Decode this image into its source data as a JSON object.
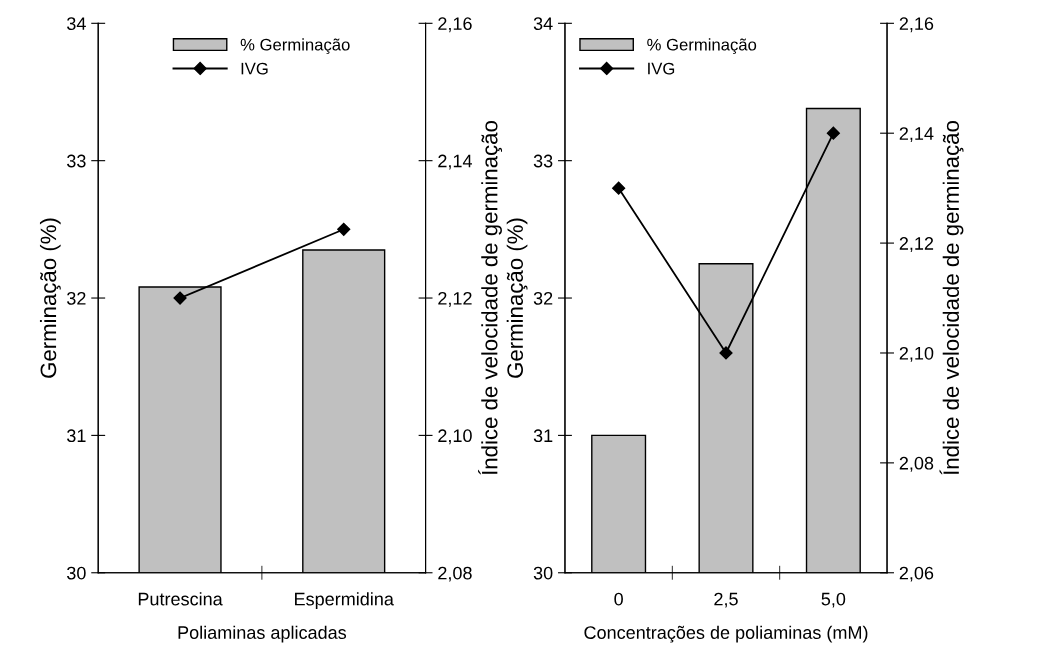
{
  "chart_data": [
    {
      "type": "bar",
      "xlabel": "Poliaminas aplicadas",
      "ylabel": "Germinação (%)",
      "y2label": "Índice de velocidade de germinação",
      "categories": [
        "Putrescina",
        "Espermidina"
      ],
      "series": [
        {
          "name": "% Germinação",
          "color": "#c0c0c0",
          "values": [
            32.08,
            32.35
          ]
        },
        {
          "name": "IVG",
          "type": "line",
          "axis": "y2",
          "color": "#000000",
          "values": [
            2.12,
            2.13
          ]
        }
      ],
      "ylim": [
        30,
        34
      ],
      "yticks": [
        30,
        31,
        32,
        33,
        34
      ],
      "y2lim": [
        2.08,
        2.16
      ],
      "y2ticks": [
        {
          "value": 2.08,
          "label": "2,08"
        },
        {
          "value": 2.1,
          "label": "2,10"
        },
        {
          "value": 2.12,
          "label": "2,12"
        },
        {
          "value": 2.14,
          "label": "2,14"
        },
        {
          "value": 2.16,
          "label": "2,16"
        }
      ],
      "marker": "diamond",
      "line_style": "solid",
      "grid": false,
      "legend": "top"
    },
    {
      "type": "bar",
      "xlabel": "Concentrações de poliaminas (mM)",
      "ylabel": "Germinação (%)",
      "y2label": "Índice de velocidade de germinação",
      "categories": [
        "0",
        "2,5",
        "5,0"
      ],
      "series": [
        {
          "name": "% Germinação",
          "color": "#c0c0c0",
          "values": [
            31.0,
            32.25,
            33.38
          ]
        },
        {
          "name": "IVG",
          "type": "line",
          "axis": "y2",
          "color": "#000000",
          "values": [
            2.13,
            2.1,
            2.14
          ]
        }
      ],
      "ylim": [
        30,
        34
      ],
      "yticks": [
        30,
        31,
        32,
        33,
        34
      ],
      "y2lim": [
        2.06,
        2.16
      ],
      "y2ticks": [
        {
          "value": 2.06,
          "label": "2,06"
        },
        {
          "value": 2.08,
          "label": "2,08"
        },
        {
          "value": 2.1,
          "label": "2,10"
        },
        {
          "value": 2.12,
          "label": "2,12"
        },
        {
          "value": 2.14,
          "label": "2,14"
        },
        {
          "value": 2.16,
          "label": "2,16"
        }
      ],
      "marker": "diamond",
      "line_style": "solid",
      "grid": false,
      "legend": "top left"
    }
  ]
}
